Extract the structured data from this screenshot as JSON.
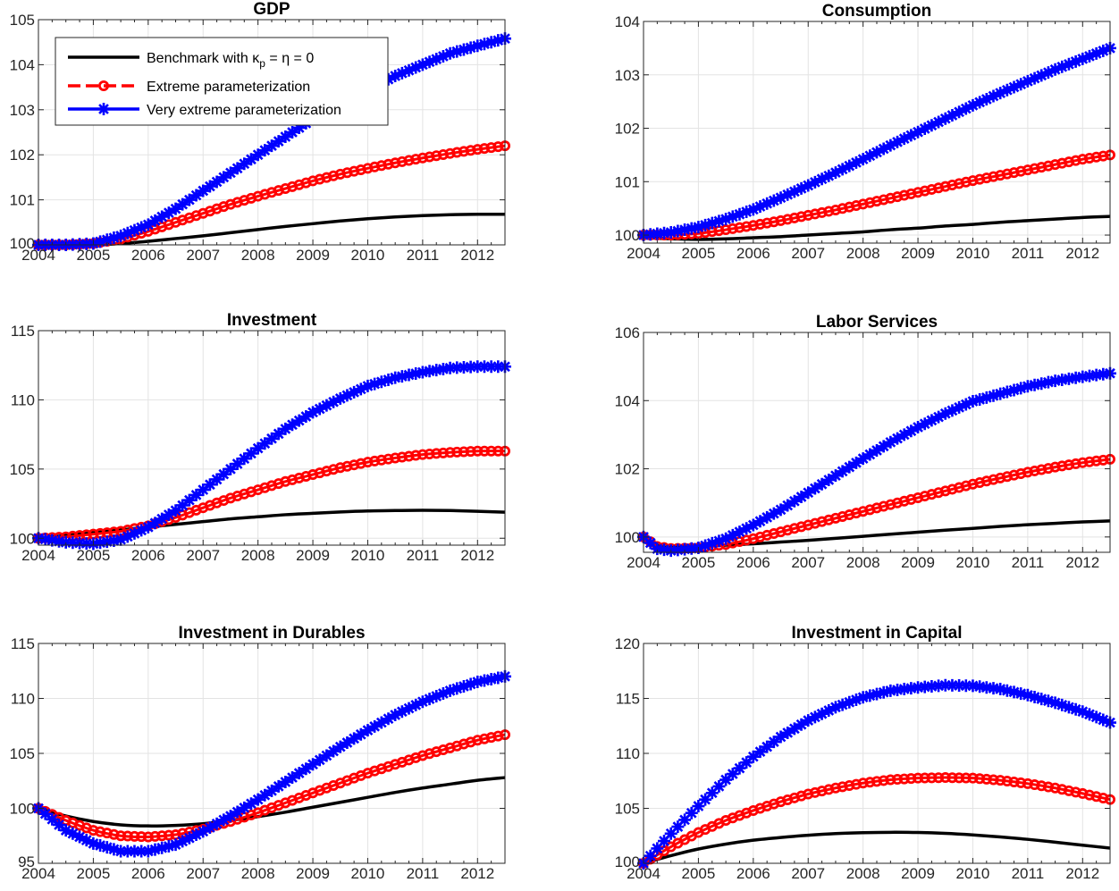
{
  "legend": {
    "benchmark_label": "Benchmark with κ",
    "benchmark_sub": "p",
    "benchmark_rest": " = η = 0",
    "extreme_label": "Extreme parameterization",
    "very_extreme_label": "Very extreme parameterization"
  },
  "colors": {
    "benchmark": "#000000",
    "extreme": "#ff0000",
    "very_extreme": "#0000ff",
    "grid": "#e3e3e3",
    "axis": "#262626"
  },
  "chart_data": [
    {
      "type": "line",
      "title": "GDP",
      "xlim": [
        2004,
        2012.5
      ],
      "ylim": [
        100,
        105
      ],
      "xticks": [
        "2004",
        "2005",
        "2006",
        "2007",
        "2008",
        "2009",
        "2010",
        "2011",
        "2012"
      ],
      "yticks": [
        "100",
        "101",
        "102",
        "103",
        "104",
        "105"
      ],
      "grid": true,
      "legend": "top-left",
      "series": [
        {
          "name": "Benchmark with κp = η = 0",
          "x": [
            2004,
            2004.5,
            2005,
            2005.5,
            2006,
            2006.5,
            2007,
            2007.5,
            2008,
            2008.5,
            2009,
            2009.5,
            2010,
            2010.5,
            2011,
            2011.5,
            2012,
            2012.5
          ],
          "y": [
            100,
            100,
            100,
            100.03,
            100.08,
            100.14,
            100.2,
            100.27,
            100.34,
            100.41,
            100.47,
            100.53,
            100.58,
            100.62,
            100.65,
            100.67,
            100.68,
            100.68
          ]
        },
        {
          "name": "Extreme parameterization",
          "x": [
            2004,
            2004.5,
            2005,
            2005.5,
            2006,
            2006.5,
            2007,
            2007.5,
            2008,
            2008.5,
            2009,
            2009.5,
            2010,
            2010.5,
            2011,
            2011.5,
            2012,
            2012.5
          ],
          "y": [
            100,
            100,
            100.03,
            100.13,
            100.3,
            100.5,
            100.7,
            100.9,
            101.08,
            101.25,
            101.42,
            101.57,
            101.7,
            101.82,
            101.93,
            102.03,
            102.12,
            102.2
          ]
        },
        {
          "name": "Very extreme parameterization",
          "x": [
            2004,
            2004.5,
            2005,
            2005.5,
            2006,
            2006.5,
            2007,
            2007.5,
            2008,
            2008.5,
            2009,
            2009.5,
            2010,
            2010.5,
            2011,
            2011.5,
            2012,
            2012.5
          ],
          "y": [
            100,
            100,
            100.03,
            100.2,
            100.45,
            100.8,
            101.2,
            101.6,
            102.0,
            102.4,
            102.8,
            103.15,
            103.45,
            103.75,
            104.0,
            104.25,
            104.42,
            104.58
          ]
        }
      ]
    },
    {
      "type": "line",
      "title": "Consumption",
      "xlim": [
        2004,
        2012.5
      ],
      "ylim": [
        99.85,
        104
      ],
      "xticks": [
        "2004",
        "2005",
        "2006",
        "2007",
        "2008",
        "2009",
        "2010",
        "2011",
        "2012"
      ],
      "yticks": [
        "100",
        "101",
        "102",
        "103",
        "104"
      ],
      "grid": true,
      "series": [
        {
          "name": "Benchmark with κp = η = 0",
          "x": [
            2004,
            2004.5,
            2005,
            2005.5,
            2006,
            2006.5,
            2007,
            2007.5,
            2008,
            2008.5,
            2009,
            2009.5,
            2010,
            2010.5,
            2011,
            2011.5,
            2012,
            2012.5
          ],
          "y": [
            99.95,
            99.93,
            99.92,
            99.93,
            99.95,
            99.97,
            100.0,
            100.03,
            100.06,
            100.1,
            100.13,
            100.17,
            100.2,
            100.24,
            100.27,
            100.3,
            100.33,
            100.35
          ]
        },
        {
          "name": "Extreme parameterization",
          "x": [
            2004,
            2004.5,
            2005,
            2005.5,
            2006,
            2006.5,
            2007,
            2007.5,
            2008,
            2008.5,
            2009,
            2009.5,
            2010,
            2010.5,
            2011,
            2011.5,
            2012,
            2012.5
          ],
          "y": [
            100,
            100,
            100.03,
            100.1,
            100.18,
            100.27,
            100.37,
            100.47,
            100.58,
            100.69,
            100.8,
            100.91,
            101.02,
            101.12,
            101.22,
            101.32,
            101.42,
            101.5
          ]
        },
        {
          "name": "Very extreme parameterization",
          "x": [
            2004,
            2004.5,
            2005,
            2005.5,
            2006,
            2006.5,
            2007,
            2007.5,
            2008,
            2008.5,
            2009,
            2009.5,
            2010,
            2010.5,
            2011,
            2011.5,
            2012,
            2012.5
          ],
          "y": [
            100,
            100.05,
            100.15,
            100.3,
            100.48,
            100.7,
            100.93,
            101.17,
            101.42,
            101.68,
            101.93,
            102.18,
            102.43,
            102.66,
            102.88,
            103.1,
            103.3,
            103.5
          ]
        }
      ]
    },
    {
      "type": "line",
      "title": "Investment",
      "xlim": [
        2004,
        2012.5
      ],
      "ylim": [
        99.5,
        115
      ],
      "xticks": [
        "2004",
        "2005",
        "2006",
        "2007",
        "2008",
        "2009",
        "2010",
        "2011",
        "2012"
      ],
      "yticks": [
        "100",
        "105",
        "110",
        "115"
      ],
      "grid": true,
      "series": [
        {
          "name": "Benchmark with κp = η = 0",
          "x": [
            2004,
            2004.5,
            2005,
            2005.5,
            2006,
            2006.5,
            2007,
            2007.5,
            2008,
            2008.5,
            2009,
            2009.5,
            2010,
            2010.5,
            2011,
            2011.5,
            2012,
            2012.5
          ],
          "y": [
            100,
            100.2,
            100.4,
            100.6,
            100.8,
            101.0,
            101.2,
            101.4,
            101.55,
            101.7,
            101.8,
            101.9,
            101.97,
            102.0,
            102.02,
            102.0,
            101.95,
            101.88
          ]
        },
        {
          "name": "Extreme parameterization",
          "x": [
            2004,
            2004.5,
            2005,
            2005.5,
            2006,
            2006.5,
            2007,
            2007.5,
            2008,
            2008.5,
            2009,
            2009.5,
            2010,
            2010.5,
            2011,
            2011.5,
            2012,
            2012.5
          ],
          "y": [
            100,
            100.1,
            100.3,
            100.5,
            100.9,
            101.5,
            102.2,
            102.9,
            103.5,
            104.1,
            104.6,
            105.1,
            105.5,
            105.8,
            106.05,
            106.2,
            106.3,
            106.3
          ]
        },
        {
          "name": "Very extreme parameterization",
          "x": [
            2004,
            2004.5,
            2005,
            2005.5,
            2006,
            2006.5,
            2007,
            2007.5,
            2008,
            2008.5,
            2009,
            2009.5,
            2010,
            2010.5,
            2011,
            2011.5,
            2012,
            2012.5
          ],
          "y": [
            100,
            99.7,
            99.6,
            99.9,
            100.8,
            102.0,
            103.5,
            105.0,
            106.5,
            107.9,
            109.1,
            110.1,
            111.0,
            111.6,
            112.0,
            112.3,
            112.4,
            112.4
          ]
        }
      ]
    },
    {
      "type": "line",
      "title": "Labor Services",
      "xlim": [
        2004,
        2012.5
      ],
      "ylim": [
        99.55,
        106
      ],
      "xticks": [
        "2004",
        "2005",
        "2006",
        "2007",
        "2008",
        "2009",
        "2010",
        "2011",
        "2012"
      ],
      "yticks": [
        "100",
        "102",
        "104",
        "106"
      ],
      "grid": true,
      "series": [
        {
          "name": "Benchmark with κp = η = 0",
          "x": [
            2004,
            2004.25,
            2004.5,
            2005,
            2005.5,
            2006,
            2006.5,
            2007,
            2007.5,
            2008,
            2008.5,
            2009,
            2009.5,
            2010,
            2010.5,
            2011,
            2011.5,
            2012,
            2012.5
          ],
          "y": [
            100,
            99.75,
            99.7,
            99.72,
            99.76,
            99.8,
            99.85,
            99.9,
            99.96,
            100.02,
            100.08,
            100.14,
            100.2,
            100.25,
            100.31,
            100.36,
            100.4,
            100.44,
            100.47
          ]
        },
        {
          "name": "Extreme parameterization",
          "x": [
            2004,
            2004.25,
            2004.5,
            2005,
            2005.5,
            2006,
            2006.5,
            2007,
            2007.5,
            2008,
            2008.5,
            2009,
            2009.5,
            2010,
            2010.5,
            2011,
            2011.5,
            2012,
            2012.5
          ],
          "y": [
            100,
            99.72,
            99.66,
            99.68,
            99.78,
            99.95,
            100.15,
            100.35,
            100.55,
            100.75,
            100.95,
            101.15,
            101.35,
            101.55,
            101.73,
            101.9,
            102.05,
            102.18,
            102.28
          ]
        },
        {
          "name": "Very extreme parameterization",
          "x": [
            2004,
            2004.25,
            2004.5,
            2005,
            2005.5,
            2006,
            2006.5,
            2007,
            2007.5,
            2008,
            2008.5,
            2009,
            2009.5,
            2010,
            2010.5,
            2011,
            2011.5,
            2012,
            2012.5
          ],
          "y": [
            100,
            99.65,
            99.6,
            99.68,
            99.95,
            100.35,
            100.8,
            101.3,
            101.8,
            102.3,
            102.78,
            103.22,
            103.62,
            103.98,
            104.2,
            104.42,
            104.58,
            104.7,
            104.8
          ]
        }
      ]
    },
    {
      "type": "line",
      "title": "Investment in Durables",
      "xlim": [
        2004,
        2012.5
      ],
      "ylim": [
        95,
        115
      ],
      "xticks": [
        "2004",
        "2005",
        "2006",
        "2007",
        "2008",
        "2009",
        "2010",
        "2011",
        "2012"
      ],
      "yticks": [
        "95",
        "100",
        "105",
        "110",
        "115"
      ],
      "grid": true,
      "series": [
        {
          "name": "Benchmark with κp = η = 0",
          "x": [
            2004,
            2004.5,
            2005,
            2005.5,
            2006,
            2006.5,
            2007,
            2007.5,
            2008,
            2008.5,
            2009,
            2009.5,
            2010,
            2010.5,
            2011,
            2011.5,
            2012,
            2012.5
          ],
          "y": [
            100,
            99.3,
            98.8,
            98.5,
            98.4,
            98.45,
            98.6,
            98.9,
            99.25,
            99.65,
            100.1,
            100.55,
            101.0,
            101.45,
            101.85,
            102.2,
            102.55,
            102.8
          ]
        },
        {
          "name": "Extreme parameterization",
          "x": [
            2004,
            2004.5,
            2005,
            2005.5,
            2006,
            2006.5,
            2007,
            2007.5,
            2008,
            2008.5,
            2009,
            2009.5,
            2010,
            2010.5,
            2011,
            2011.5,
            2012,
            2012.5
          ],
          "y": [
            100,
            98.9,
            98.0,
            97.5,
            97.4,
            97.6,
            98.1,
            98.8,
            99.6,
            100.5,
            101.4,
            102.3,
            103.2,
            104.0,
            104.8,
            105.5,
            106.2,
            106.7
          ]
        },
        {
          "name": "Very extreme parameterization",
          "x": [
            2004,
            2004.5,
            2005,
            2005.5,
            2006,
            2006.5,
            2007,
            2007.5,
            2008,
            2008.5,
            2009,
            2009.5,
            2010,
            2010.5,
            2011,
            2011.5,
            2012,
            2012.5
          ],
          "y": [
            100,
            98.0,
            96.8,
            96.1,
            96.1,
            96.7,
            97.9,
            99.3,
            100.8,
            102.4,
            104.0,
            105.6,
            107.1,
            108.5,
            109.7,
            110.7,
            111.5,
            112.0
          ]
        }
      ]
    },
    {
      "type": "line",
      "title": "Investment in Capital",
      "xlim": [
        2004,
        2012.5
      ],
      "ylim": [
        100,
        120
      ],
      "xticks": [
        "2004",
        "2005",
        "2006",
        "2007",
        "2008",
        "2009",
        "2010",
        "2011",
        "2012"
      ],
      "yticks": [
        "100",
        "105",
        "110",
        "115",
        "120"
      ],
      "grid": true,
      "series": [
        {
          "name": "Benchmark with κp = η = 0",
          "x": [
            2004,
            2004.5,
            2005,
            2005.5,
            2006,
            2006.5,
            2007,
            2007.5,
            2008,
            2008.5,
            2009,
            2009.5,
            2010,
            2010.5,
            2011,
            2011.5,
            2012,
            2012.5
          ],
          "y": [
            100,
            100.7,
            101.3,
            101.75,
            102.1,
            102.35,
            102.55,
            102.7,
            102.78,
            102.82,
            102.8,
            102.72,
            102.58,
            102.4,
            102.18,
            101.92,
            101.65,
            101.38
          ]
        },
        {
          "name": "Extreme parameterization",
          "x": [
            2004,
            2004.5,
            2005,
            2005.5,
            2006,
            2006.5,
            2007,
            2007.5,
            2008,
            2008.5,
            2009,
            2009.5,
            2010,
            2010.5,
            2011,
            2011.5,
            2012,
            2012.5
          ],
          "y": [
            100,
            101.5,
            102.8,
            103.9,
            104.8,
            105.6,
            106.3,
            106.85,
            107.3,
            107.6,
            107.75,
            107.8,
            107.75,
            107.55,
            107.25,
            106.85,
            106.35,
            105.8
          ]
        },
        {
          "name": "Very extreme parameterization",
          "x": [
            2004,
            2004.5,
            2005,
            2005.5,
            2006,
            2006.5,
            2007,
            2007.5,
            2008,
            2008.5,
            2009,
            2009.5,
            2010,
            2010.5,
            2011,
            2011.5,
            2012,
            2012.5
          ],
          "y": [
            100,
            102.7,
            105.2,
            107.6,
            109.7,
            111.5,
            113.0,
            114.2,
            115.1,
            115.7,
            116.0,
            116.2,
            116.15,
            115.85,
            115.3,
            114.6,
            113.8,
            112.8
          ]
        }
      ]
    }
  ]
}
